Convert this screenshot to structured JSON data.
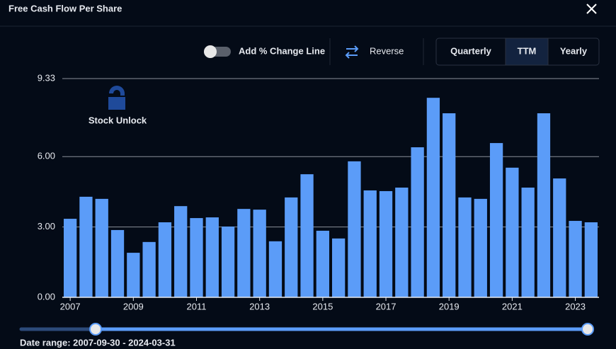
{
  "header": {
    "title": "Free Cash Flow Per Share"
  },
  "controls": {
    "toggle_label": "Add % Change Line",
    "reverse": "Reverse",
    "periods": [
      "Quarterly",
      "TTM",
      "Yearly"
    ],
    "selected": "TTM"
  },
  "watermark": "Stock Unlock",
  "chart_data": {
    "type": "bar",
    "categories": [
      "2007",
      null,
      null,
      null,
      "2009",
      null,
      null,
      null,
      "2011",
      null,
      null,
      null,
      "2013",
      null,
      null,
      null,
      "2015",
      null,
      null,
      null,
      "2017",
      null,
      null,
      null,
      "2019",
      null,
      null,
      null,
      "2021",
      null,
      null,
      null,
      "2023",
      null
    ],
    "values": [
      3.35,
      4.29,
      4.2,
      2.87,
      1.9,
      2.36,
      3.2,
      3.89,
      3.38,
      3.41,
      3.02,
      3.77,
      3.74,
      2.39,
      4.26,
      5.25,
      2.84,
      2.51,
      5.8,
      4.56,
      4.53,
      4.68,
      6.4,
      8.51,
      7.85,
      4.26,
      4.2,
      6.58,
      5.53,
      4.68,
      7.85,
      5.07,
      3.26,
      3.2
    ],
    "color": "#5b9cf8",
    "ylim": [
      0,
      9.33
    ],
    "yticks": [
      {
        "value": 0,
        "label": "0.00"
      },
      {
        "value": 3,
        "label": "3.00"
      },
      {
        "value": 6,
        "label": "6.00"
      },
      {
        "value": 9.33,
        "label": "9.33"
      }
    ],
    "grid": true
  },
  "footer": {
    "date_range": "Date range: 2007-09-30 - 2024-03-31"
  }
}
